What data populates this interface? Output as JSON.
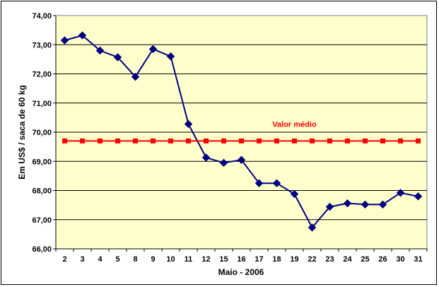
{
  "chart_data": {
    "type": "line",
    "title": "",
    "xlabel": "Maio - 2006",
    "ylabel": "Em US$ / saca de 60 kg",
    "categories": [
      "2",
      "3",
      "4",
      "5",
      "8",
      "9",
      "10",
      "11",
      "12",
      "15",
      "16",
      "17",
      "18",
      "19",
      "22",
      "23",
      "24",
      "25",
      "26",
      "30",
      "31"
    ],
    "ylim": [
      66,
      74
    ],
    "ytick_labels": [
      "66,00",
      "67,00",
      "68,00",
      "69,00",
      "70,00",
      "71,00",
      "72,00",
      "73,00",
      "74,00"
    ],
    "grid": "horizontal",
    "plot_background": "#FFFFCC",
    "series": [
      {
        "color": "#000080",
        "marker": "diamond",
        "values": [
          73.15,
          73.32,
          72.8,
          72.57,
          71.9,
          72.85,
          72.6,
          70.28,
          69.13,
          68.95,
          69.05,
          68.25,
          68.25,
          67.88,
          66.73,
          67.44,
          67.56,
          67.52,
          67.52,
          67.92,
          67.8
        ]
      },
      {
        "name": "Valor médio",
        "color": "#FF0000",
        "marker": "square",
        "values": [
          69.7,
          69.7,
          69.7,
          69.7,
          69.7,
          69.7,
          69.7,
          69.7,
          69.7,
          69.7,
          69.7,
          69.7,
          69.7,
          69.7,
          69.7,
          69.7,
          69.7,
          69.7,
          69.7,
          69.7,
          69.7
        ]
      }
    ],
    "annotations": [
      {
        "text": "Valor médio",
        "color": "#FF0000",
        "x_category": "19",
        "y": 70.28
      }
    ]
  }
}
